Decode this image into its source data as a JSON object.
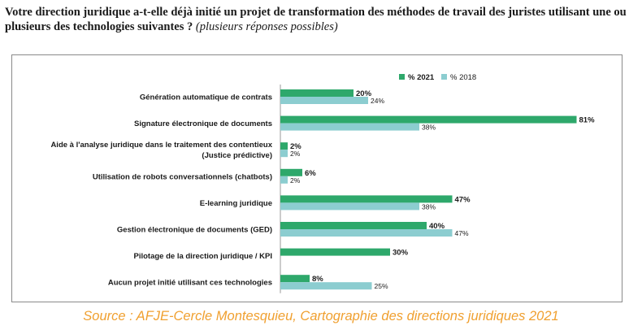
{
  "header": {
    "question": "Votre direction juridique a-t-elle déjà initié un projet de transformation des méthodes de travail des juristes utilisant une ou plusieurs des technologies suivantes ?",
    "note": "(plusieurs réponses possibles)"
  },
  "footer": {
    "source": "Source : AFJE-Cercle Montesquieu, Cartographie des directions juridiques 2021"
  },
  "colors": {
    "series_2021": "#2ea86b",
    "series_2018": "#8ccdd0",
    "source_text": "#f0a030"
  },
  "chart_data": {
    "type": "bar",
    "orientation": "horizontal",
    "categories": [
      [
        "Génération automatique de contrats"
      ],
      [
        "Signature électronique de documents"
      ],
      [
        "Aide à l'analyse juridique dans le traitement des contentieux",
        "(Justice prédictive)"
      ],
      [
        "Utilisation de robots conversationnels (chatbots)"
      ],
      [
        "E-learning juridique"
      ],
      [
        "Gestion électronique de documents (GED)"
      ],
      [
        "Pilotage de la direction juridique / KPI"
      ],
      [
        "Aucun projet initié utilisant ces technologies"
      ]
    ],
    "series": [
      {
        "name": "% 2021",
        "values": [
          20,
          81,
          2,
          6,
          47,
          40,
          30,
          8
        ],
        "labels": [
          "20%",
          "81%",
          "2%",
          "6%",
          "47%",
          "40%",
          "30%",
          "8%"
        ]
      },
      {
        "name": "% 2018",
        "values": [
          24,
          38,
          2,
          2,
          38,
          47,
          null,
          25
        ],
        "labels": [
          "24%",
          "38%",
          "2%",
          "2%",
          "38%",
          "47%",
          "",
          "25%"
        ]
      }
    ],
    "unit": "%",
    "xlim": [
      0,
      100
    ],
    "legend_position": "top-right",
    "grid": false
  }
}
